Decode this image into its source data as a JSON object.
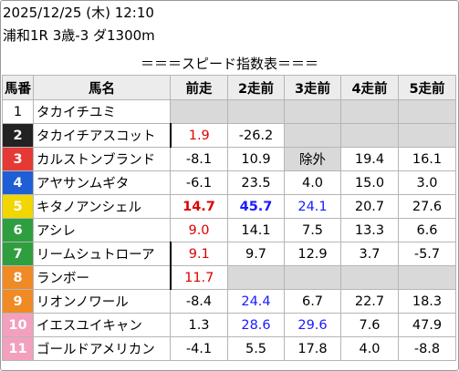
{
  "header": {
    "datetime": "2025/12/25 (木) 12:10",
    "race": "浦和1R 3歳-3 ダ1300m"
  },
  "title": "＝＝＝スピード指数表＝＝＝",
  "columns": [
    "馬番",
    "馬名",
    "前走",
    "2走前",
    "3走前",
    "4走前",
    "5走前"
  ],
  "rows": [
    {
      "num": "1",
      "color": "#ffffff",
      "text_color": "#000000",
      "name": "タカイチユミ",
      "vals": [
        "",
        "",
        "",
        "",
        ""
      ],
      "styles": [
        "e",
        "e",
        "e",
        "e",
        "e"
      ]
    },
    {
      "num": "2",
      "color": "#222222",
      "text_color": "#ffffff",
      "name": "タカイチアスコット",
      "vals": [
        "1.9",
        "-26.2",
        "",
        "",
        ""
      ],
      "styles": [
        "red",
        "",
        "e",
        "e",
        "e"
      ]
    },
    {
      "num": "3",
      "color": "#e53935",
      "text_color": "#ffffff",
      "name": "カルストンブランド",
      "vals": [
        "-8.1",
        "10.9",
        "除外",
        "19.4",
        "16.1"
      ],
      "styles": [
        "",
        "",
        "e",
        "",
        ""
      ]
    },
    {
      "num": "4",
      "color": "#1e5fd6",
      "text_color": "#ffffff",
      "name": "アヤサンムギタ",
      "vals": [
        "-6.1",
        "23.5",
        "4.0",
        "15.0",
        "3.0"
      ],
      "styles": [
        "",
        "",
        "",
        "",
        ""
      ]
    },
    {
      "num": "5",
      "color": "#f2d600",
      "text_color": "#ffffff",
      "name": "キタノアンシェル",
      "vals": [
        "14.7",
        "45.7",
        "24.1",
        "20.7",
        "27.6"
      ],
      "styles": [
        "redb",
        "blueb",
        "blue",
        "",
        ""
      ]
    },
    {
      "num": "6",
      "color": "#2e9e3e",
      "text_color": "#ffffff",
      "name": "アシレ",
      "vals": [
        "9.0",
        "14.1",
        "7.5",
        "13.3",
        "6.6"
      ],
      "styles": [
        "red",
        "",
        "",
        "",
        ""
      ]
    },
    {
      "num": "7",
      "color": "#2e9e3e",
      "text_color": "#ffffff",
      "name": "リームシュトローア",
      "vals": [
        "9.1",
        "9.7",
        "12.9",
        "3.7",
        "-5.7"
      ],
      "styles": [
        "red",
        "",
        "",
        "",
        ""
      ]
    },
    {
      "num": "8",
      "color": "#f08a24",
      "text_color": "#ffffff",
      "name": "ランボー",
      "vals": [
        "11.7",
        "",
        "",
        "",
        ""
      ],
      "styles": [
        "red",
        "e",
        "e",
        "e",
        "e"
      ]
    },
    {
      "num": "9",
      "color": "#f08a24",
      "text_color": "#ffffff",
      "name": "リオンノワール",
      "vals": [
        "-8.4",
        "24.4",
        "6.7",
        "22.7",
        "18.3"
      ],
      "styles": [
        "",
        "blue",
        "",
        "",
        ""
      ]
    },
    {
      "num": "10",
      "color": "#f2a0bd",
      "text_color": "#ffffff",
      "name": "イエスユイキャン",
      "vals": [
        "1.3",
        "28.6",
        "29.6",
        "7.6",
        "47.9"
      ],
      "styles": [
        "",
        "blue",
        "blue",
        "",
        ""
      ]
    },
    {
      "num": "11",
      "color": "#f2a0bd",
      "text_color": "#ffffff",
      "name": "ゴールドアメリカン",
      "vals": [
        "-4.1",
        "5.5",
        "17.8",
        "4.0",
        "-8.8"
      ],
      "styles": [
        "",
        "",
        "",
        "",
        ""
      ]
    }
  ]
}
